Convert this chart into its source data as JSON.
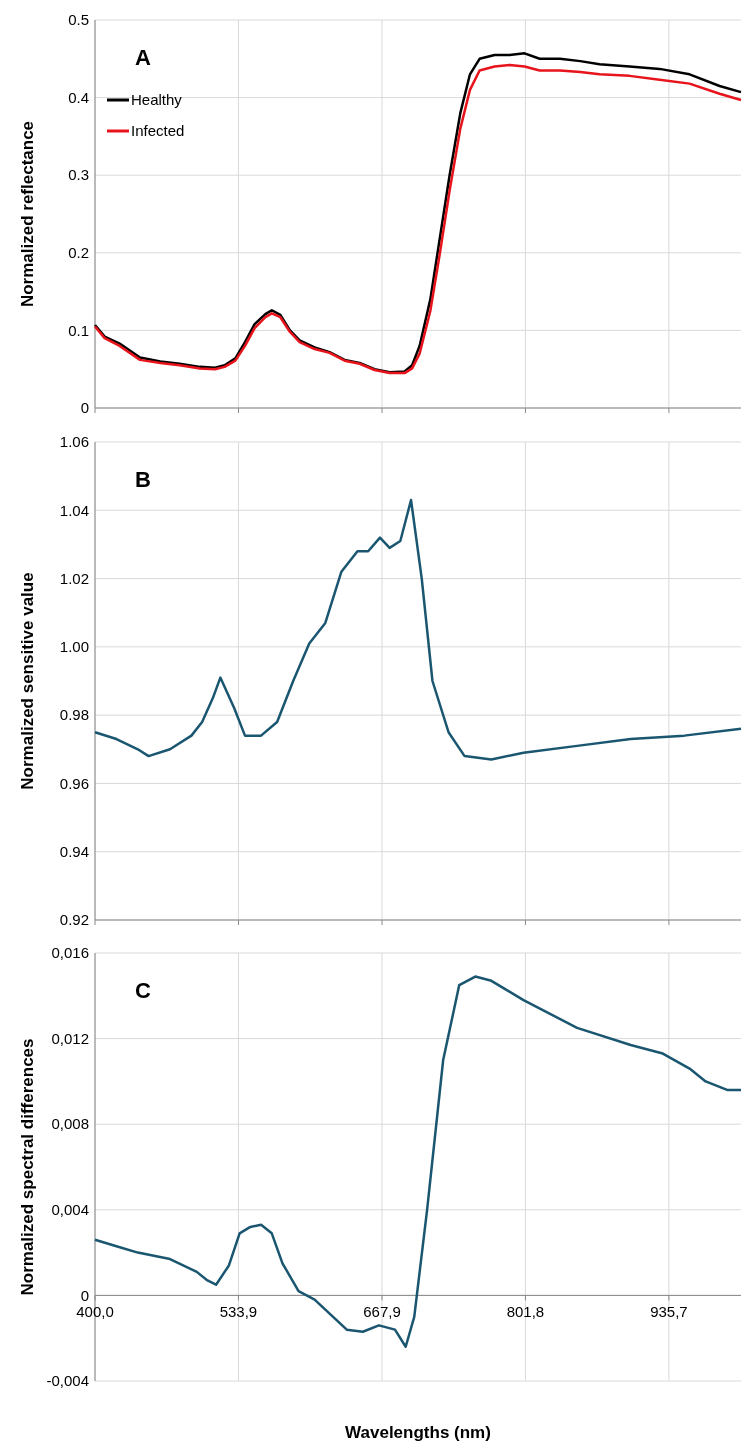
{
  "chart_data": [
    {
      "type": "line",
      "annotations": [
        "A"
      ],
      "ylabel": "Normalized reflectance",
      "legend": "top left",
      "grid": true,
      "tick_labels": "y",
      "xlim": [
        400,
        1003
      ],
      "xticks": [
        {
          "value": 400,
          "label": null
        },
        {
          "value": 533.9,
          "label": null
        },
        {
          "value": 667.9,
          "label": null
        },
        {
          "value": 801.8,
          "label": null
        },
        {
          "value": 935.7,
          "label": null
        }
      ],
      "ylim": [
        0,
        0.5
      ],
      "yticks": [
        0,
        0.1,
        0.2,
        0.3,
        0.4,
        0.5
      ],
      "x": [
        400,
        409,
        423,
        442,
        461,
        479,
        498,
        512,
        521,
        531,
        540,
        549,
        559,
        565,
        573,
        582,
        591,
        605,
        619,
        633,
        647,
        661,
        675,
        689,
        696,
        703,
        713,
        722,
        731,
        741,
        750,
        759,
        773,
        787,
        801,
        815,
        834,
        853,
        871,
        899,
        927,
        955,
        983,
        1003
      ],
      "series": [
        {
          "name": "Healthy",
          "color": "#000000",
          "values": [
            0.107,
            0.092,
            0.083,
            0.065,
            0.06,
            0.057,
            0.053,
            0.052,
            0.055,
            0.064,
            0.085,
            0.108,
            0.121,
            0.126,
            0.12,
            0.1,
            0.087,
            0.078,
            0.072,
            0.062,
            0.058,
            0.05,
            0.046,
            0.047,
            0.055,
            0.08,
            0.14,
            0.22,
            0.3,
            0.38,
            0.43,
            0.45,
            0.455,
            0.455,
            0.457,
            0.45,
            0.45,
            0.447,
            0.443,
            0.44,
            0.437,
            0.43,
            0.415,
            0.407
          ]
        },
        {
          "name": "Infected",
          "color": "#e8141b",
          "values": [
            0.105,
            0.09,
            0.08,
            0.062,
            0.058,
            0.055,
            0.051,
            0.05,
            0.053,
            0.061,
            0.08,
            0.103,
            0.117,
            0.122,
            0.117,
            0.098,
            0.085,
            0.076,
            0.071,
            0.061,
            0.057,
            0.049,
            0.045,
            0.045,
            0.051,
            0.07,
            0.125,
            0.2,
            0.28,
            0.36,
            0.41,
            0.435,
            0.44,
            0.442,
            0.44,
            0.435,
            0.435,
            0.433,
            0.43,
            0.428,
            0.423,
            0.418,
            0.405,
            0.397
          ]
        }
      ]
    },
    {
      "type": "line",
      "annotations": [
        "B"
      ],
      "ylabel": "Normalized sensitive value",
      "grid": true,
      "tick_labels": "y",
      "xlim": [
        400,
        1003
      ],
      "xticks": [
        {
          "value": 400,
          "label": null
        },
        {
          "value": 533.9,
          "label": null
        },
        {
          "value": 667.9,
          "label": null
        },
        {
          "value": 801.8,
          "label": null
        },
        {
          "value": 935.7,
          "label": null
        }
      ],
      "ylim": [
        0.92,
        1.06
      ],
      "yticks": [
        {
          "value": 0.92,
          "label": "0.92"
        },
        {
          "value": 0.94,
          "label": "0.94"
        },
        {
          "value": 0.96,
          "label": "0.96"
        },
        {
          "value": 0.98,
          "label": "0.98"
        },
        {
          "value": 1,
          "label": "1.00"
        },
        {
          "value": 1.02,
          "label": "1.02"
        },
        {
          "value": 1.04,
          "label": "1.04"
        },
        {
          "value": 1.06,
          "label": "1.06"
        }
      ],
      "x": [
        400,
        420,
        440,
        450,
        470,
        490,
        500,
        510,
        517,
        530,
        540,
        555,
        570,
        585,
        600,
        615,
        630,
        645,
        655,
        666,
        675,
        685,
        695,
        705,
        715,
        730,
        745,
        770,
        800,
        850,
        900,
        950,
        1003
      ],
      "series": [
        {
          "color": "#1a5670",
          "values": [
            0.975,
            0.973,
            0.97,
            0.968,
            0.97,
            0.974,
            0.978,
            0.985,
            0.991,
            0.982,
            0.974,
            0.974,
            0.978,
            0.99,
            1.001,
            1.007,
            1.022,
            1.028,
            1.028,
            1.032,
            1.029,
            1.031,
            1.043,
            1.02,
            0.99,
            0.975,
            0.968,
            0.967,
            0.969,
            0.971,
            0.973,
            0.974,
            0.976
          ]
        }
      ]
    },
    {
      "type": "line",
      "annotations": [
        "C"
      ],
      "ylabel": "Normalized spectral differences",
      "xlabel": "Wavelengths (nm)",
      "grid": true,
      "xlim": [
        400,
        1003
      ],
      "xticks": [
        {
          "value": 400,
          "label": "400,0"
        },
        {
          "value": 533.9,
          "label": "533,9"
        },
        {
          "value": 667.9,
          "label": "667,9"
        },
        {
          "value": 801.8,
          "label": "801,8"
        },
        {
          "value": 935.7,
          "label": "935,7"
        }
      ],
      "ylim": [
        -0.004,
        0.016
      ],
      "yticks": [
        {
          "value": -0.004,
          "label": "-0,004"
        },
        0,
        {
          "value": 0.004,
          "label": "0,004"
        },
        {
          "value": 0.008,
          "label": "0,008"
        },
        {
          "value": 0.012,
          "label": "0,012"
        },
        {
          "value": 0.016,
          "label": "0,016"
        }
      ],
      "x": [
        400,
        420,
        440,
        470,
        495,
        505,
        513,
        525,
        535,
        545,
        555,
        565,
        575,
        590,
        605,
        620,
        635,
        650,
        665,
        680,
        690,
        698,
        710,
        725,
        740,
        755,
        770,
        800,
        850,
        900,
        930,
        955,
        970,
        990,
        1003
      ],
      "series": [
        {
          "color": "#1a5670",
          "values": [
            0.0026,
            0.0023,
            0.002,
            0.0017,
            0.0011,
            0.0007,
            0.0005,
            0.0014,
            0.0029,
            0.0032,
            0.0033,
            0.0029,
            0.0015,
            0.0002,
            -0.0002,
            -0.0009,
            -0.0016,
            -0.0017,
            -0.0014,
            -0.0016,
            -0.0024,
            -0.001,
            0.004,
            0.011,
            0.0145,
            0.0149,
            0.0147,
            0.0138,
            0.0125,
            0.0117,
            0.0113,
            0.0106,
            0.01,
            0.0096,
            0.0096
          ]
        }
      ]
    }
  ]
}
